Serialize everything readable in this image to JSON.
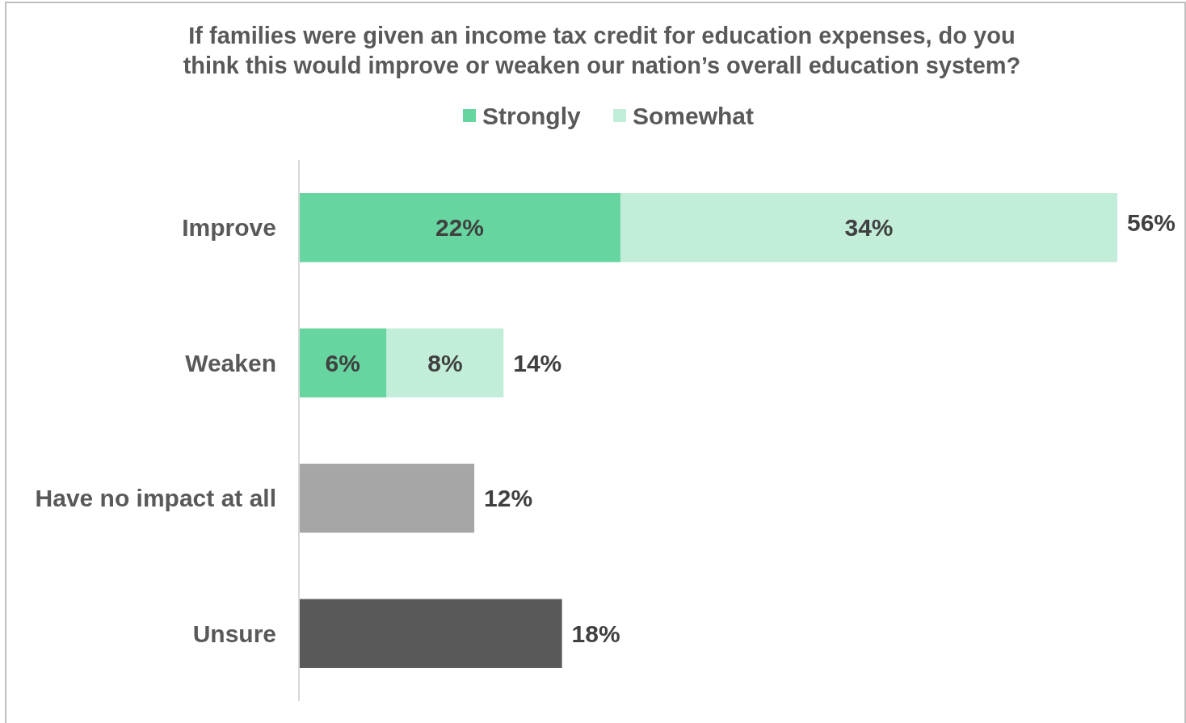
{
  "chart_data": {
    "type": "bar",
    "orientation": "horizontal",
    "stacked": true,
    "title": "If families were given an income tax credit for education expenses, do you think this would improve or weaken our nation’s overall education system?",
    "categories": [
      "Improve",
      "Weaken",
      "Have no impact at all",
      "Unsure"
    ],
    "series": [
      {
        "name": "Strongly",
        "color": "#66d5a0",
        "values": [
          22,
          6,
          null,
          null
        ],
        "value_labels": [
          "22%",
          "6%",
          null,
          null
        ]
      },
      {
        "name": "Somewhat",
        "color": "#c2eed9",
        "values": [
          34,
          8,
          null,
          null
        ],
        "value_labels": [
          "34%",
          "8%",
          null,
          null
        ]
      },
      {
        "colors": [
          null,
          null,
          "#a6a6a6",
          "#595959"
        ],
        "values": [
          null,
          null,
          12,
          18
        ]
      }
    ],
    "totals": [
      "56%",
      "14%",
      "12%",
      "18%"
    ],
    "legend": "top"
  }
}
